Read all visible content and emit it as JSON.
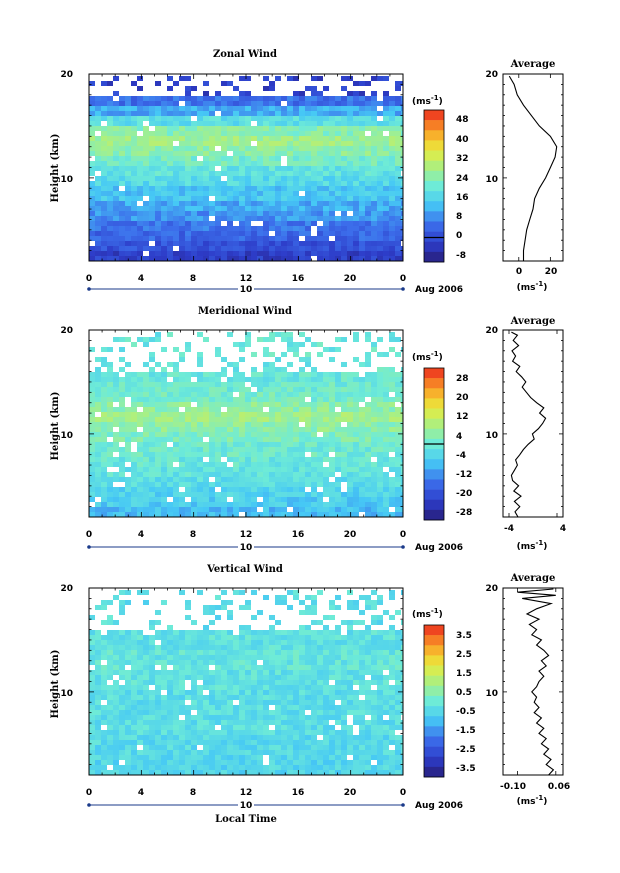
{
  "chart_data": [
    {
      "type": "heatmap",
      "title": "Zonal Wind",
      "xlabel": "",
      "ylabel": "Height (km)",
      "xlim": [
        0,
        24
      ],
      "ylim": [
        2,
        20
      ],
      "x_ticks": [
        "0",
        "4",
        "8",
        "12",
        "16",
        "20",
        "0"
      ],
      "y_ticks": [
        "10",
        "20"
      ],
      "date_day": "10",
      "date_label": "Aug 2006",
      "colorbar": {
        "unit": "(ms",
        "unit_sup": "-1",
        "unit_close": ")",
        "range": [
          -10,
          52
        ],
        "ticks": [
          "48",
          "40",
          "32",
          "24",
          "16",
          "8",
          "0",
          "-8"
        ],
        "zero_line": true
      },
      "bands": [
        {
          "h0": 2,
          "h1": 3,
          "v": -2
        },
        {
          "h0": 3,
          "h1": 4,
          "v": 1
        },
        {
          "h0": 4,
          "h1": 5,
          "v": 4
        },
        {
          "h0": 5,
          "h1": 6,
          "v": 6
        },
        {
          "h0": 6,
          "h1": 7,
          "v": 9
        },
        {
          "h0": 7,
          "h1": 8,
          "v": 11
        },
        {
          "h0": 8,
          "h1": 9,
          "v": 14
        },
        {
          "h0": 9,
          "h1": 10,
          "v": 17
        },
        {
          "h0": 10,
          "h1": 11,
          "v": 19
        },
        {
          "h0": 11,
          "h1": 12,
          "v": 22
        },
        {
          "h0": 12,
          "h1": 13,
          "v": 25
        },
        {
          "h0": 13,
          "h1": 14,
          "v": 27
        },
        {
          "h0": 14,
          "h1": 15,
          "v": 24
        },
        {
          "h0": 15,
          "h1": 16,
          "v": 18
        },
        {
          "h0": 16,
          "h1": 17,
          "v": 11
        },
        {
          "h0": 17,
          "h1": 18,
          "v": 5
        }
      ],
      "sparse_top": {
        "h0": 18,
        "h1": 20,
        "v": -2
      },
      "average": {
        "title": "Average",
        "xlabel_unit": "(ms",
        "xlabel_sup": "-1",
        "xlabel_close": ")",
        "xlim": [
          -10,
          28
        ],
        "x_ticks": [
          {
            "v": 0,
            "label": "0"
          },
          {
            "v": 20,
            "label": "20"
          }
        ],
        "y_ticks": [
          "10",
          "20"
        ],
        "profile": [
          [
            2,
            3
          ],
          [
            3,
            3
          ],
          [
            4,
            4
          ],
          [
            5,
            5
          ],
          [
            6,
            7
          ],
          [
            7,
            9
          ],
          [
            8,
            10
          ],
          [
            9,
            13
          ],
          [
            10,
            17
          ],
          [
            11,
            20
          ],
          [
            12,
            23
          ],
          [
            13,
            24
          ],
          [
            14,
            20
          ],
          [
            15,
            13
          ],
          [
            16,
            8
          ],
          [
            17,
            3
          ],
          [
            18,
            -1
          ],
          [
            19,
            -3
          ],
          [
            19.8,
            -6
          ]
        ]
      }
    },
    {
      "type": "heatmap",
      "title": "Meridional Wind",
      "xlabel": "",
      "ylabel": "Height (km)",
      "xlim": [
        0,
        24
      ],
      "ylim": [
        2,
        20
      ],
      "x_ticks": [
        "0",
        "4",
        "8",
        "12",
        "16",
        "20",
        "0"
      ],
      "y_ticks": [
        "10",
        "20"
      ],
      "date_day": "10",
      "date_label": "Aug 2006",
      "colorbar": {
        "unit": "(ms",
        "unit_sup": "-1",
        "unit_close": ")",
        "range": [
          -30,
          30
        ],
        "ticks": [
          "28",
          "20",
          "12",
          "4",
          "-4",
          "-12",
          "-20",
          "-28"
        ],
        "zero_line": true
      },
      "bands": [
        {
          "h0": 2,
          "h1": 3,
          "v": -8
        },
        {
          "h0": 3,
          "h1": 4,
          "v": -6
        },
        {
          "h0": 4,
          "h1": 5,
          "v": -5
        },
        {
          "h0": 5,
          "h1": 6,
          "v": -3
        },
        {
          "h0": 6,
          "h1": 7,
          "v": -2
        },
        {
          "h0": 7,
          "h1": 8,
          "v": -1
        },
        {
          "h0": 8,
          "h1": 9,
          "v": 0
        },
        {
          "h0": 9,
          "h1": 10,
          "v": 2
        },
        {
          "h0": 10,
          "h1": 11,
          "v": 4
        },
        {
          "h0": 11,
          "h1": 12,
          "v": 6
        },
        {
          "h0": 12,
          "h1": 13,
          "v": 4
        },
        {
          "h0": 13,
          "h1": 14,
          "v": 1
        },
        {
          "h0": 14,
          "h1": 15,
          "v": 0
        },
        {
          "h0": 15,
          "h1": 16,
          "v": -1
        }
      ],
      "sparse_top": {
        "h0": 16,
        "h1": 20,
        "v": -1
      },
      "average": {
        "title": "Average",
        "xlabel_unit": "(ms",
        "xlabel_sup": "-1",
        "xlabel_close": ")",
        "xlim": [
          -5,
          5
        ],
        "x_ticks": [
          {
            "v": -4,
            "label": "-4"
          },
          {
            "v": 4,
            "label": "4"
          }
        ],
        "y_ticks": [
          "10",
          "20"
        ],
        "profile": [
          [
            2,
            -2.5
          ],
          [
            2.5,
            -3
          ],
          [
            3,
            -2.2
          ],
          [
            3.5,
            -3.1
          ],
          [
            4,
            -2
          ],
          [
            4.5,
            -3.2
          ],
          [
            5,
            -2.4
          ],
          [
            5.5,
            -3.4
          ],
          [
            6,
            -3.6
          ],
          [
            6.5,
            -3.1
          ],
          [
            7,
            -2.6
          ],
          [
            7.5,
            -2.9
          ],
          [
            8,
            -2.2
          ],
          [
            8.5,
            -1.6
          ],
          [
            9,
            -0.8
          ],
          [
            9.5,
            0.2
          ],
          [
            10,
            -0.1
          ],
          [
            10.5,
            0.9
          ],
          [
            11,
            1.6
          ],
          [
            11.5,
            2.1
          ],
          [
            12,
            1.1
          ],
          [
            12.5,
            1.8
          ],
          [
            13,
            0.6
          ],
          [
            13.5,
            -0.4
          ],
          [
            14,
            -1.1
          ],
          [
            14.5,
            -1.8
          ],
          [
            15,
            -1.2
          ],
          [
            15.5,
            -1.9
          ],
          [
            16,
            -2.8
          ],
          [
            16.5,
            -2.2
          ],
          [
            17,
            -3.4
          ],
          [
            17.5,
            -2.9
          ],
          [
            18,
            -3.5
          ],
          [
            18.5,
            -2.4
          ],
          [
            19,
            -3.3
          ],
          [
            19.5,
            -2.6
          ],
          [
            19.8,
            -3.6
          ]
        ]
      }
    },
    {
      "type": "heatmap",
      "title": "Vertical Wind",
      "xlabel": "Local Time",
      "ylabel": "Height (km)",
      "xlim": [
        0,
        24
      ],
      "ylim": [
        2,
        20
      ],
      "x_ticks": [
        "0",
        "4",
        "8",
        "12",
        "16",
        "20",
        "0"
      ],
      "y_ticks": [
        "10",
        "20"
      ],
      "date_day": "10",
      "date_label": "Aug 2006",
      "colorbar": {
        "unit": "(ms",
        "unit_sup": "-1",
        "unit_close": ")",
        "range": [
          -4,
          4
        ],
        "ticks": [
          "3.5",
          "2.5",
          "1.5",
          "0.5",
          "-0.5",
          "-1.5",
          "-2.5",
          "-3.5"
        ],
        "zero_line": false
      },
      "bands": [
        {
          "h0": 2,
          "h1": 4,
          "v": -0.6
        },
        {
          "h0": 4,
          "h1": 6,
          "v": -0.5
        },
        {
          "h0": 6,
          "h1": 8,
          "v": -0.4
        },
        {
          "h0": 8,
          "h1": 10,
          "v": -0.4
        },
        {
          "h0": 10,
          "h1": 12,
          "v": -0.3
        },
        {
          "h0": 12,
          "h1": 14,
          "v": -0.2
        },
        {
          "h0": 14,
          "h1": 16,
          "v": -0.3
        }
      ],
      "sparse_top": {
        "h0": 16,
        "h1": 20,
        "v": -0.4
      },
      "average": {
        "title": "Average",
        "xlabel_unit": "(ms",
        "xlabel_sup": "-1",
        "xlabel_close": ")",
        "xlim": [
          -0.16,
          0.09
        ],
        "x_ticks": [
          {
            "v": -0.1,
            "label": "-0.10"
          },
          {
            "v": 0.06,
            "label": "0.06"
          }
        ],
        "y_ticks": [
          "10",
          "20"
        ],
        "profile": [
          [
            2,
            0.03
          ],
          [
            2.5,
            0.05
          ],
          [
            3,
            0.02
          ],
          [
            3.5,
            0.04
          ],
          [
            4,
            0.01
          ],
          [
            4.5,
            0.03
          ],
          [
            5,
            0.0
          ],
          [
            5.5,
            0.02
          ],
          [
            6,
            -0.01
          ],
          [
            6.5,
            0.01
          ],
          [
            7,
            -0.02
          ],
          [
            7.5,
            0.0
          ],
          [
            8,
            -0.03
          ],
          [
            8.5,
            -0.01
          ],
          [
            9,
            -0.03
          ],
          [
            9.5,
            -0.02
          ],
          [
            10,
            -0.04
          ],
          [
            10.5,
            -0.02
          ],
          [
            11,
            -0.01
          ],
          [
            11.5,
            0.01
          ],
          [
            12,
            -0.01
          ],
          [
            12.5,
            0.02
          ],
          [
            13,
            0.0
          ],
          [
            13.5,
            0.03
          ],
          [
            14,
            0.01
          ],
          [
            14.5,
            -0.02
          ],
          [
            15,
            0.0
          ],
          [
            15.5,
            -0.04
          ],
          [
            16,
            -0.02
          ],
          [
            16.5,
            -0.05
          ],
          [
            17,
            -0.01
          ],
          [
            17.5,
            -0.06
          ],
          [
            18,
            -0.02
          ],
          [
            18.5,
            0.04
          ],
          [
            19,
            -0.08
          ],
          [
            19.3,
            0.06
          ],
          [
            19.6,
            -0.1
          ],
          [
            19.9,
            0.05
          ]
        ]
      }
    }
  ]
}
